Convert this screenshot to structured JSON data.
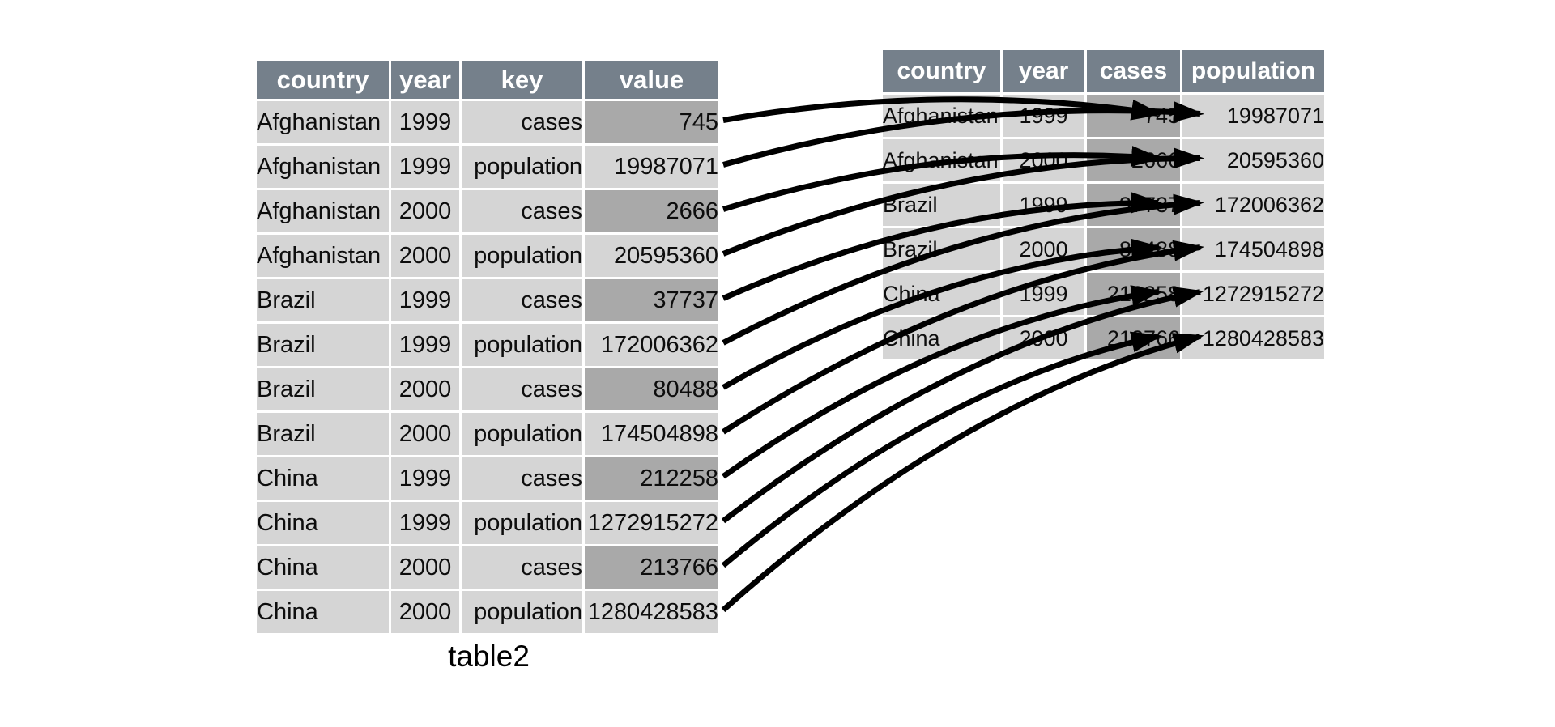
{
  "left_table": {
    "caption": "table2",
    "columns": [
      "country",
      "year",
      "key",
      "value"
    ],
    "rows": [
      [
        "Afghanistan",
        "1999",
        "cases",
        "745"
      ],
      [
        "Afghanistan",
        "1999",
        "population",
        "19987071"
      ],
      [
        "Afghanistan",
        "2000",
        "cases",
        "2666"
      ],
      [
        "Afghanistan",
        "2000",
        "population",
        "20595360"
      ],
      [
        "Brazil",
        "1999",
        "cases",
        "37737"
      ],
      [
        "Brazil",
        "1999",
        "population",
        "172006362"
      ],
      [
        "Brazil",
        "2000",
        "cases",
        "80488"
      ],
      [
        "Brazil",
        "2000",
        "population",
        "174504898"
      ],
      [
        "China",
        "1999",
        "cases",
        "212258"
      ],
      [
        "China",
        "1999",
        "population",
        "1272915272"
      ],
      [
        "China",
        "2000",
        "cases",
        "213766"
      ],
      [
        "China",
        "2000",
        "population",
        "1280428583"
      ]
    ],
    "highlighted_key": "cases"
  },
  "right_table": {
    "columns": [
      "country",
      "year",
      "cases",
      "population"
    ],
    "rows": [
      [
        "Afghanistan",
        "1999",
        "745",
        "19987071"
      ],
      [
        "Afghanistan",
        "2000",
        "2666",
        "20595360"
      ],
      [
        "Brazil",
        "1999",
        "37737",
        "172006362"
      ],
      [
        "Brazil",
        "2000",
        "80488",
        "174504898"
      ],
      [
        "China",
        "1999",
        "212258",
        "1272915272"
      ],
      [
        "China",
        "2000",
        "213766",
        "1280428583"
      ]
    ],
    "highlighted_column": "cases"
  },
  "arrows": [
    {
      "from_row": 0,
      "to_row": 0,
      "to_col": "cases"
    },
    {
      "from_row": 1,
      "to_row": 0,
      "to_col": "population"
    },
    {
      "from_row": 2,
      "to_row": 1,
      "to_col": "cases"
    },
    {
      "from_row": 3,
      "to_row": 1,
      "to_col": "population"
    },
    {
      "from_row": 4,
      "to_row": 2,
      "to_col": "cases"
    },
    {
      "from_row": 5,
      "to_row": 2,
      "to_col": "population"
    },
    {
      "from_row": 6,
      "to_row": 3,
      "to_col": "cases"
    },
    {
      "from_row": 7,
      "to_row": 3,
      "to_col": "population"
    },
    {
      "from_row": 8,
      "to_row": 4,
      "to_col": "cases"
    },
    {
      "from_row": 9,
      "to_row": 4,
      "to_col": "population"
    },
    {
      "from_row": 10,
      "to_row": 5,
      "to_col": "cases"
    },
    {
      "from_row": 11,
      "to_row": 5,
      "to_col": "population"
    }
  ],
  "colors": {
    "header_bg": "#75808b",
    "cell_bg": "#d5d5d5",
    "highlight_bg": "#a9a9a9",
    "header_text": "#ffffff",
    "cell_text": "#0d0d0d",
    "arrow": "#000000"
  }
}
